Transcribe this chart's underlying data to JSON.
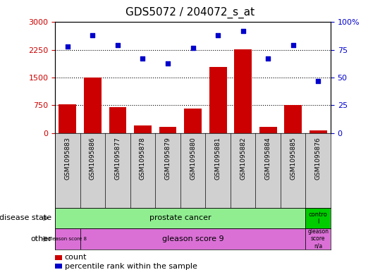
{
  "title": "GDS5072 / 204072_s_at",
  "samples": [
    "GSM1095883",
    "GSM1095886",
    "GSM1095877",
    "GSM1095878",
    "GSM1095879",
    "GSM1095880",
    "GSM1095881",
    "GSM1095882",
    "GSM1095884",
    "GSM1095885",
    "GSM1095876"
  ],
  "counts": [
    780,
    1500,
    700,
    200,
    170,
    670,
    1780,
    2270,
    160,
    760,
    60
  ],
  "percentiles": [
    78,
    88,
    79,
    67,
    63,
    77,
    88,
    92,
    67,
    79,
    47
  ],
  "ylim_left": [
    0,
    3000
  ],
  "ylim_right": [
    0,
    100
  ],
  "yticks_left": [
    0,
    750,
    1500,
    2250,
    3000
  ],
  "yticks_right": [
    0,
    25,
    50,
    75,
    100
  ],
  "bar_color": "#cc0000",
  "dot_color": "#0000cc",
  "disease_state_row_label": "disease state",
  "other_row_label": "other",
  "legend_count": "count",
  "legend_percentile": "percentile rank within the sample",
  "dotted_lines": [
    750,
    1500,
    2250
  ],
  "tick_label_color_left": "#cc0000",
  "tick_label_color_right": "#0000cc",
  "light_green": "#90ee90",
  "bright_green": "#00cc00",
  "orchid": "#da70d6",
  "gray_bg": "#d0d0d0"
}
